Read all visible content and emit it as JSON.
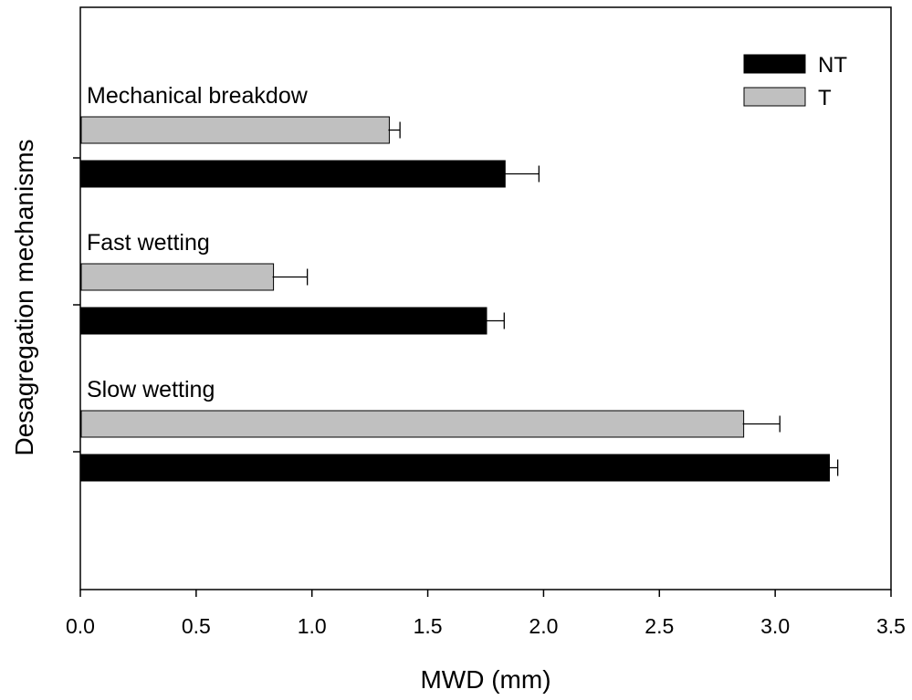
{
  "chart_data": {
    "type": "bar",
    "orientation": "horizontal",
    "xlabel": "MWD (mm)",
    "ylabel": "Desagregation mechanisms",
    "xlim": [
      0,
      3.5
    ],
    "xticks": [
      "0.0",
      "0.5",
      "1.0",
      "1.5",
      "2.0",
      "2.5",
      "3.0",
      "3.5"
    ],
    "grid": false,
    "legend_position": "top-right",
    "categories": [
      "Mechanical breakdow",
      "Fast wetting",
      "Slow wetting"
    ],
    "series": [
      {
        "name": "NT",
        "color": "#000000",
        "values": [
          1.83,
          1.75,
          3.23
        ],
        "errors": [
          0.15,
          0.08,
          0.04
        ]
      },
      {
        "name": "T",
        "color": "#c0c0c0",
        "values": [
          1.33,
          0.83,
          2.86
        ],
        "errors": [
          0.05,
          0.15,
          0.16
        ]
      }
    ]
  }
}
